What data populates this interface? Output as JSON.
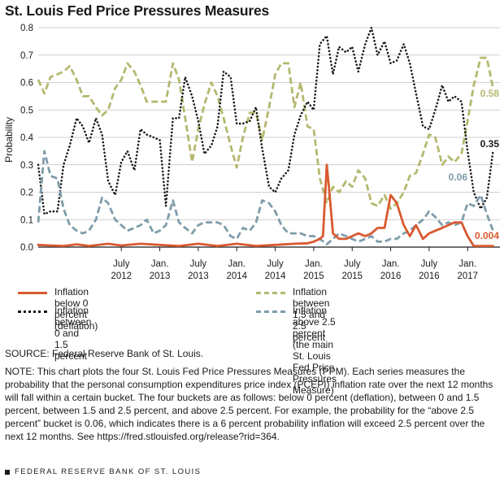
{
  "title": "St. Louis Fed Price Pressures Measures",
  "chart_data": {
    "type": "line",
    "ylabel": "Probability",
    "ylim": [
      0,
      0.8
    ],
    "yticks": [
      0.0,
      0.1,
      0.2,
      0.3,
      0.4,
      0.5,
      0.6,
      0.7,
      0.8
    ],
    "ytick_labels": [
      "0.0",
      "0.1",
      "0.2",
      "0.3",
      "0.4",
      "0.5",
      "0.6",
      "0.7",
      "0.8"
    ],
    "x_start": 2011.42,
    "x_end": 2017.42,
    "xticks": [
      {
        "year": 2012.5,
        "month": "July",
        "label": "2012"
      },
      {
        "year": 2013.0,
        "month": "Jan.",
        "label": "2013"
      },
      {
        "year": 2013.5,
        "month": "July",
        "label": "2013"
      },
      {
        "year": 2014.0,
        "month": "Jan.",
        "label": "2014"
      },
      {
        "year": 2014.5,
        "month": "July",
        "label": "2014"
      },
      {
        "year": 2015.0,
        "month": "Jan.",
        "label": "2015"
      },
      {
        "year": 2015.5,
        "month": "July",
        "label": "2015"
      },
      {
        "year": 2016.0,
        "month": "Jan.",
        "label": "2016"
      },
      {
        "year": 2016.5,
        "month": "July",
        "label": "2016"
      },
      {
        "year": 2017.0,
        "month": "Jan.",
        "label": "2017"
      }
    ],
    "series": [
      {
        "name": "Inflation between 1.5 and 2.5 percent",
        "color": "#b5b86e",
        "style": "dashed",
        "end_label": "0.58",
        "points": [
          [
            2011.42,
            0.61
          ],
          [
            2011.5,
            0.56
          ],
          [
            2011.58,
            0.62
          ],
          [
            2011.67,
            0.63
          ],
          [
            2011.75,
            0.64
          ],
          [
            2011.83,
            0.66
          ],
          [
            2011.92,
            0.61
          ],
          [
            2012.0,
            0.55
          ],
          [
            2012.08,
            0.55
          ],
          [
            2012.17,
            0.51
          ],
          [
            2012.25,
            0.48
          ],
          [
            2012.33,
            0.5
          ],
          [
            2012.42,
            0.58
          ],
          [
            2012.5,
            0.61
          ],
          [
            2012.58,
            0.67
          ],
          [
            2012.67,
            0.64
          ],
          [
            2012.75,
            0.59
          ],
          [
            2012.83,
            0.53
          ],
          [
            2012.92,
            0.53
          ],
          [
            2013.0,
            0.53
          ],
          [
            2013.08,
            0.53
          ],
          [
            2013.17,
            0.67
          ],
          [
            2013.25,
            0.61
          ],
          [
            2013.33,
            0.47
          ],
          [
            2013.42,
            0.31
          ],
          [
            2013.5,
            0.43
          ],
          [
            2013.58,
            0.52
          ],
          [
            2013.67,
            0.6
          ],
          [
            2013.75,
            0.55
          ],
          [
            2013.83,
            0.47
          ],
          [
            2013.92,
            0.37
          ],
          [
            2014.0,
            0.29
          ],
          [
            2014.08,
            0.4
          ],
          [
            2014.17,
            0.49
          ],
          [
            2014.25,
            0.49
          ],
          [
            2014.33,
            0.39
          ],
          [
            2014.42,
            0.51
          ],
          [
            2014.5,
            0.63
          ],
          [
            2014.58,
            0.67
          ],
          [
            2014.67,
            0.67
          ],
          [
            2014.75,
            0.51
          ],
          [
            2014.83,
            0.6
          ],
          [
            2014.92,
            0.44
          ],
          [
            2015.0,
            0.43
          ],
          [
            2015.08,
            0.25
          ],
          [
            2015.17,
            0.16
          ],
          [
            2015.25,
            0.22
          ],
          [
            2015.33,
            0.2
          ],
          [
            2015.42,
            0.24
          ],
          [
            2015.5,
            0.22
          ],
          [
            2015.58,
            0.28
          ],
          [
            2015.67,
            0.25
          ],
          [
            2015.75,
            0.16
          ],
          [
            2015.83,
            0.15
          ],
          [
            2015.92,
            0.19
          ],
          [
            2016.0,
            0.14
          ],
          [
            2016.08,
            0.16
          ],
          [
            2016.17,
            0.2
          ],
          [
            2016.25,
            0.26
          ],
          [
            2016.33,
            0.27
          ],
          [
            2016.42,
            0.34
          ],
          [
            2016.5,
            0.41
          ],
          [
            2016.58,
            0.4
          ],
          [
            2016.67,
            0.3
          ],
          [
            2016.75,
            0.33
          ],
          [
            2016.83,
            0.31
          ],
          [
            2016.92,
            0.34
          ],
          [
            2017.0,
            0.46
          ],
          [
            2017.08,
            0.59
          ],
          [
            2017.17,
            0.69
          ],
          [
            2017.25,
            0.69
          ],
          [
            2017.33,
            0.58
          ]
        ]
      },
      {
        "name": "Inflation between 0 and 1.5 percent",
        "color": "#1a1a1a",
        "style": "dotted",
        "end_label": "0.35",
        "points": [
          [
            2011.42,
            0.3
          ],
          [
            2011.5,
            0.12
          ],
          [
            2011.58,
            0.13
          ],
          [
            2011.67,
            0.13
          ],
          [
            2011.75,
            0.3
          ],
          [
            2011.83,
            0.37
          ],
          [
            2011.92,
            0.47
          ],
          [
            2012.0,
            0.44
          ],
          [
            2012.08,
            0.38
          ],
          [
            2012.17,
            0.47
          ],
          [
            2012.25,
            0.41
          ],
          [
            2012.33,
            0.24
          ],
          [
            2012.42,
            0.19
          ],
          [
            2012.5,
            0.31
          ],
          [
            2012.58,
            0.35
          ],
          [
            2012.67,
            0.28
          ],
          [
            2012.75,
            0.43
          ],
          [
            2012.83,
            0.41
          ],
          [
            2012.92,
            0.4
          ],
          [
            2013.0,
            0.39
          ],
          [
            2013.08,
            0.15
          ],
          [
            2013.17,
            0.47
          ],
          [
            2013.25,
            0.47
          ],
          [
            2013.33,
            0.62
          ],
          [
            2013.42,
            0.55
          ],
          [
            2013.5,
            0.46
          ],
          [
            2013.58,
            0.34
          ],
          [
            2013.67,
            0.37
          ],
          [
            2013.75,
            0.44
          ],
          [
            2013.83,
            0.64
          ],
          [
            2013.92,
            0.62
          ],
          [
            2014.0,
            0.45
          ],
          [
            2014.08,
            0.45
          ],
          [
            2014.17,
            0.46
          ],
          [
            2014.25,
            0.51
          ],
          [
            2014.33,
            0.36
          ],
          [
            2014.42,
            0.22
          ],
          [
            2014.5,
            0.2
          ],
          [
            2014.58,
            0.25
          ],
          [
            2014.67,
            0.28
          ],
          [
            2014.75,
            0.41
          ],
          [
            2014.83,
            0.48
          ],
          [
            2014.92,
            0.53
          ],
          [
            2015.0,
            0.5
          ],
          [
            2015.08,
            0.74
          ],
          [
            2015.17,
            0.77
          ],
          [
            2015.25,
            0.63
          ],
          [
            2015.33,
            0.73
          ],
          [
            2015.42,
            0.71
          ],
          [
            2015.5,
            0.73
          ],
          [
            2015.58,
            0.64
          ],
          [
            2015.67,
            0.74
          ],
          [
            2015.75,
            0.8
          ],
          [
            2015.83,
            0.7
          ],
          [
            2015.92,
            0.75
          ],
          [
            2016.0,
            0.67
          ],
          [
            2016.08,
            0.68
          ],
          [
            2016.17,
            0.74
          ],
          [
            2016.25,
            0.67
          ],
          [
            2016.33,
            0.56
          ],
          [
            2016.42,
            0.44
          ],
          [
            2016.5,
            0.43
          ],
          [
            2016.58,
            0.5
          ],
          [
            2016.67,
            0.59
          ],
          [
            2016.75,
            0.53
          ],
          [
            2016.83,
            0.55
          ],
          [
            2016.92,
            0.53
          ],
          [
            2017.0,
            0.35
          ],
          [
            2017.08,
            0.2
          ],
          [
            2017.17,
            0.14
          ],
          [
            2017.25,
            0.18
          ],
          [
            2017.33,
            0.35
          ]
        ]
      },
      {
        "name": "Inflation above 2.5 percent (the main St. Louis Fed Price Pressures Measure)",
        "color": "#7f9caa",
        "style": "dashed",
        "end_label": "0.06",
        "points": [
          [
            2011.42,
            0.09
          ],
          [
            2011.5,
            0.35
          ],
          [
            2011.58,
            0.26
          ],
          [
            2011.67,
            0.25
          ],
          [
            2011.75,
            0.14
          ],
          [
            2011.83,
            0.08
          ],
          [
            2011.92,
            0.06
          ],
          [
            2012.0,
            0.05
          ],
          [
            2012.08,
            0.06
          ],
          [
            2012.17,
            0.1
          ],
          [
            2012.25,
            0.18
          ],
          [
            2012.33,
            0.16
          ],
          [
            2012.42,
            0.1
          ],
          [
            2012.5,
            0.08
          ],
          [
            2012.58,
            0.06
          ],
          [
            2012.67,
            0.07
          ],
          [
            2012.75,
            0.08
          ],
          [
            2012.83,
            0.1
          ],
          [
            2012.92,
            0.05
          ],
          [
            2013.0,
            0.06
          ],
          [
            2013.08,
            0.08
          ],
          [
            2013.17,
            0.17
          ],
          [
            2013.25,
            0.09
          ],
          [
            2013.33,
            0.07
          ],
          [
            2013.42,
            0.05
          ],
          [
            2013.5,
            0.08
          ],
          [
            2013.58,
            0.09
          ],
          [
            2013.67,
            0.09
          ],
          [
            2013.75,
            0.09
          ],
          [
            2013.83,
            0.08
          ],
          [
            2013.92,
            0.04
          ],
          [
            2014.0,
            0.03
          ],
          [
            2014.08,
            0.07
          ],
          [
            2014.17,
            0.06
          ],
          [
            2014.25,
            0.09
          ],
          [
            2014.33,
            0.17
          ],
          [
            2014.42,
            0.16
          ],
          [
            2014.5,
            0.13
          ],
          [
            2014.58,
            0.08
          ],
          [
            2014.67,
            0.05
          ],
          [
            2014.75,
            0.05
          ],
          [
            2014.83,
            0.05
          ],
          [
            2014.92,
            0.04
          ],
          [
            2015.0,
            0.04
          ],
          [
            2015.08,
            0.03
          ],
          [
            2015.17,
            0.01
          ],
          [
            2015.25,
            0.03
          ],
          [
            2015.33,
            0.05
          ],
          [
            2015.42,
            0.04
          ],
          [
            2015.5,
            0.03
          ],
          [
            2015.58,
            0.02
          ],
          [
            2015.67,
            0.03
          ],
          [
            2015.75,
            0.04
          ],
          [
            2015.83,
            0.02
          ],
          [
            2015.92,
            0.02
          ],
          [
            2016.0,
            0.03
          ],
          [
            2016.08,
            0.03
          ],
          [
            2016.17,
            0.05
          ],
          [
            2016.25,
            0.06
          ],
          [
            2016.33,
            0.08
          ],
          [
            2016.42,
            0.1
          ],
          [
            2016.5,
            0.13
          ],
          [
            2016.58,
            0.11
          ],
          [
            2016.67,
            0.08
          ],
          [
            2016.75,
            0.09
          ],
          [
            2016.83,
            0.08
          ],
          [
            2016.92,
            0.09
          ],
          [
            2017.0,
            0.16
          ],
          [
            2017.08,
            0.15
          ],
          [
            2017.17,
            0.19
          ],
          [
            2017.25,
            0.12
          ],
          [
            2017.33,
            0.06
          ]
        ]
      },
      {
        "name": "Inflation below 0 percent (deflation)",
        "color": "#d9592f",
        "style": "solid",
        "end_label": "0.004",
        "points": [
          [
            2011.42,
            0.008
          ],
          [
            2011.58,
            0.006
          ],
          [
            2011.75,
            0.004
          ],
          [
            2011.92,
            0.01
          ],
          [
            2012.08,
            0.004
          ],
          [
            2012.33,
            0.012
          ],
          [
            2012.5,
            0.006
          ],
          [
            2012.75,
            0.012
          ],
          [
            2013.0,
            0.008
          ],
          [
            2013.25,
            0.004
          ],
          [
            2013.5,
            0.012
          ],
          [
            2013.75,
            0.004
          ],
          [
            2014.0,
            0.012
          ],
          [
            2014.25,
            0.004
          ],
          [
            2014.5,
            0.008
          ],
          [
            2014.75,
            0.012
          ],
          [
            2014.92,
            0.014
          ],
          [
            2015.0,
            0.02
          ],
          [
            2015.08,
            0.03
          ],
          [
            2015.12,
            0.04
          ],
          [
            2015.17,
            0.3
          ],
          [
            2015.21,
            0.18
          ],
          [
            2015.25,
            0.05
          ],
          [
            2015.33,
            0.03
          ],
          [
            2015.42,
            0.03
          ],
          [
            2015.5,
            0.04
          ],
          [
            2015.58,
            0.05
          ],
          [
            2015.67,
            0.04
          ],
          [
            2015.75,
            0.05
          ],
          [
            2015.83,
            0.07
          ],
          [
            2015.92,
            0.07
          ],
          [
            2016.0,
            0.19
          ],
          [
            2016.08,
            0.16
          ],
          [
            2016.17,
            0.08
          ],
          [
            2016.25,
            0.04
          ],
          [
            2016.33,
            0.08
          ],
          [
            2016.42,
            0.03
          ],
          [
            2016.5,
            0.05
          ],
          [
            2016.58,
            0.06
          ],
          [
            2016.67,
            0.07
          ],
          [
            2016.75,
            0.08
          ],
          [
            2016.83,
            0.09
          ],
          [
            2016.92,
            0.09
          ],
          [
            2017.0,
            0.04
          ],
          [
            2017.08,
            0.004
          ],
          [
            2017.17,
            0.004
          ],
          [
            2017.33,
            0.004
          ]
        ]
      }
    ]
  },
  "legend": [
    {
      "line1": "Inflation below 0 percent (deflation)"
    },
    {
      "line1": "Inflation between 1.5 and 2.5 percent"
    },
    {
      "line1": "Inflation between 0 and 1.5 percent"
    },
    {
      "line1": "Inflation above 2.5 percent",
      "line2": "(the main St. Louis Fed Price",
      "line3": "Pressures Measure)"
    }
  ],
  "source": "SOURCE: Federal Reserve Bank of St. Louis.",
  "note": "NOTE: This chart plots the four St. Louis Fed Price Pressures Measures (PPM). Each series measures the probability that the personal consumption expenditures price index (PCEPI) inflation rate over the next 12 months will fall within a certain bucket. The four buckets are as follows: below 0 percent (deflation), between 0 and 1.5 percent, between 1.5 and 2.5 percent, and above 2.5 percent. For example, the probability for the “above 2.5 percent” bucket is 0.06, which indicates there is a 6 percent probability inflation will exceed 2.5 percent over the next 12 months. See https://fred.stlouisfed.org/release?rid=364.",
  "footer": "FEDERAL RESERVE BANK OF ST. LOUIS"
}
